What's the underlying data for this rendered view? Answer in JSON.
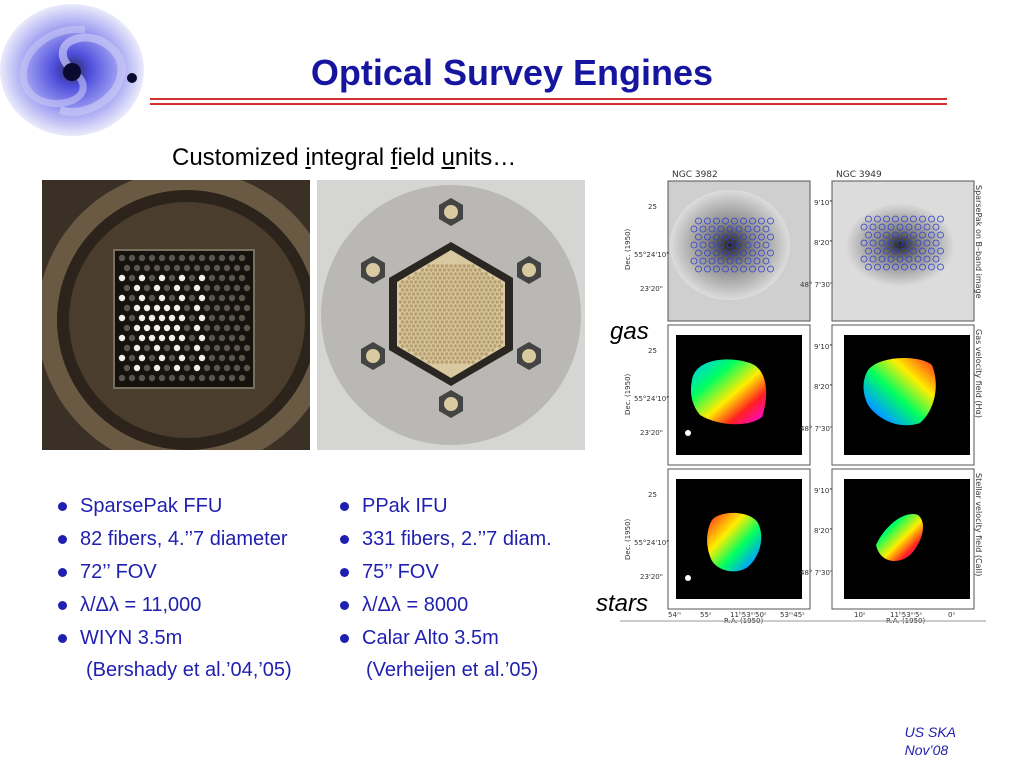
{
  "slide": {
    "title": "Optical Survey Engines",
    "subtitle": {
      "part1": "Customized ",
      "u1": "i",
      "part2": "ntegral ",
      "u2": "f",
      "part3": "ield ",
      "u3": "u",
      "part4": "nits…"
    },
    "left_list": {
      "items": [
        "SparsePak FFU",
        "82 fibers, 4.’’7 diameter",
        "72’’ FOV",
        "λ/Δλ = 11,000",
        "WIYN 3.5m"
      ],
      "reference": "(Bershady et al.’04,’05)"
    },
    "right_list": {
      "items": [
        "PPak IFU",
        "331 fibers, 2.’’7 diam.",
        "75’’ FOV",
        "λ/Δλ = 8000",
        "Calar Alto 3.5m"
      ],
      "reference": "(Verheijen et al.’05)"
    },
    "figure": {
      "label_gas": "gas",
      "label_stars": "stars",
      "galaxy_left": "NGC 3982",
      "galaxy_right": "NGC 3949",
      "side_caption_top": "SparsePak on B–band image",
      "side_caption_mid": "Gas velocity field (Hα)",
      "side_caption_bot": "Stellar velocity field (CaII)",
      "dec_label": "Dec. (1950)",
      "ra_label": "R.A. (1950)",
      "left_yticks": [
        "25",
        "55°24'10\"",
        "23'20\""
      ],
      "right_yticks": [
        "9'10\"",
        "8'20\"",
        "48° 7'30\""
      ],
      "left_xticks": [
        "54ᵐ",
        "55ˢ",
        "11ʰ53ᵐ50ˢ",
        "53ᵐ45ˢ"
      ],
      "right_xticks": [
        "10ˢ",
        "11ʰ53ᵐ5ˢ",
        "0ˢ"
      ]
    },
    "footer": {
      "line1": "US SKA",
      "line2": "Nov’08"
    }
  }
}
